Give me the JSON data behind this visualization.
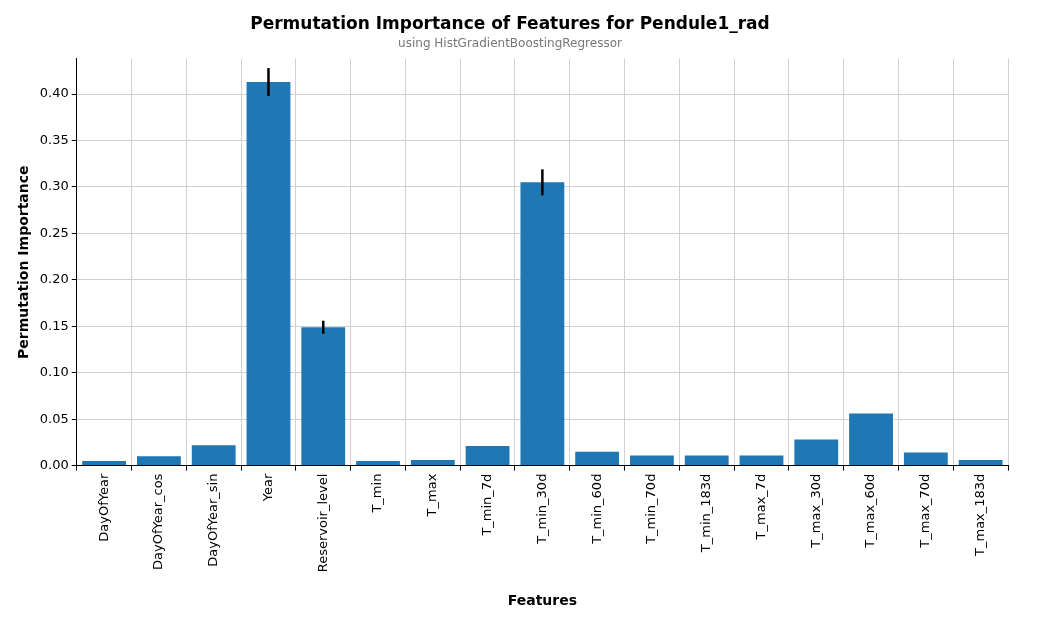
{
  "chart_data": {
    "type": "bar",
    "title": "Permutation Importance of Features for Pendule1_rad",
    "subtitle": "using HistGradientBoostingRegressor",
    "xlabel": "Features",
    "ylabel": "Permutation Importance",
    "categories": [
      "DayOfYear",
      "DayOfYear_cos",
      "DayOfYear_sin",
      "Year",
      "Reservoir_level",
      "T_min",
      "T_max",
      "T_min_7d",
      "T_min_30d",
      "T_min_60d",
      "T_min_70d",
      "T_min_183d",
      "T_max_7d",
      "T_max_30d",
      "T_max_60d",
      "T_max_70d",
      "T_max_183d"
    ],
    "values": [
      0.005,
      0.01,
      0.022,
      0.413,
      0.149,
      0.005,
      0.006,
      0.021,
      0.305,
      0.015,
      0.011,
      0.011,
      0.011,
      0.028,
      0.056,
      0.014,
      0.006
    ],
    "errors": [
      null,
      null,
      null,
      0.015,
      0.007,
      null,
      null,
      null,
      0.014,
      null,
      null,
      null,
      null,
      null,
      null,
      null,
      null
    ],
    "color": "#1f77b4",
    "ylim": [
      0,
      0.438
    ],
    "yticks": [
      {
        "value": 0,
        "label": "0.00"
      },
      {
        "value": 0.05,
        "label": "0.05"
      },
      {
        "value": 0.1,
        "label": "0.10"
      },
      {
        "value": 0.15,
        "label": "0.15"
      },
      {
        "value": 0.2,
        "label": "0.20"
      },
      {
        "value": 0.25,
        "label": "0.25"
      },
      {
        "value": 0.3,
        "label": "0.30"
      },
      {
        "value": 0.35,
        "label": "0.35"
      },
      {
        "value": 0.4,
        "label": "0.40"
      }
    ],
    "grid": true
  }
}
